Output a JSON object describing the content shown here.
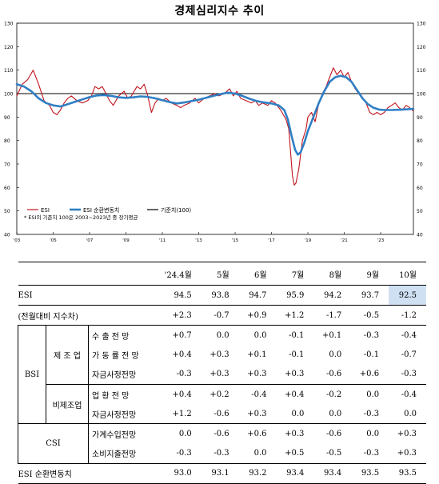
{
  "chart_data": {
    "type": "line",
    "title": "경제심리지수 추이",
    "ylim": [
      40,
      130
    ],
    "yticks": [
      40,
      50,
      60,
      70,
      80,
      90,
      100,
      110,
      120,
      130
    ],
    "x_range": [
      2003.0,
      2024.8
    ],
    "xtick_labels": [
      {
        "x": 2003,
        "label": "'03"
      },
      {
        "x": 2005,
        "label": "'05"
      },
      {
        "x": 2007,
        "label": "'07"
      },
      {
        "x": 2009,
        "label": "'09"
      },
      {
        "x": 2011,
        "label": "'11"
      },
      {
        "x": 2013,
        "label": "'13"
      },
      {
        "x": 2015,
        "label": "'15"
      },
      {
        "x": 2017,
        "label": "'17"
      },
      {
        "x": 2019,
        "label": "'19"
      },
      {
        "x": 2021,
        "label": "'21"
      },
      {
        "x": 2023,
        "label": "'23"
      }
    ],
    "reference_line": 100,
    "legend": [
      {
        "name": "ESI",
        "color": "#c0141c"
      },
      {
        "name": "ESI 순환변동치",
        "color": "#2f7fc4"
      },
      {
        "name": "기준치(100)",
        "color": "#000000"
      }
    ],
    "note": "* ESI의 기준치 100은 2003~2023년 중 장기평균",
    "series": [
      {
        "name": "ESI",
        "color": "#c0141c",
        "points": [
          [
            2003.0,
            99
          ],
          [
            2003.3,
            104
          ],
          [
            2003.6,
            106
          ],
          [
            2003.9,
            110
          ],
          [
            2004.2,
            104
          ],
          [
            2004.5,
            97
          ],
          [
            2004.8,
            95
          ],
          [
            2005.0,
            92
          ],
          [
            2005.2,
            91
          ],
          [
            2005.4,
            93
          ],
          [
            2005.6,
            96
          ],
          [
            2005.8,
            98
          ],
          [
            2006.0,
            99
          ],
          [
            2006.3,
            97
          ],
          [
            2006.6,
            96
          ],
          [
            2006.9,
            97
          ],
          [
            2007.1,
            99
          ],
          [
            2007.3,
            103
          ],
          [
            2007.5,
            102
          ],
          [
            2007.7,
            103
          ],
          [
            2007.9,
            100
          ],
          [
            2008.1,
            97
          ],
          [
            2008.3,
            95
          ],
          [
            2008.6,
            99
          ],
          [
            2008.9,
            101
          ],
          [
            2009.1,
            98
          ],
          [
            2009.3,
            99
          ],
          [
            2009.6,
            103
          ],
          [
            2009.8,
            102
          ],
          [
            2010.0,
            104
          ],
          [
            2010.2,
            99
          ],
          [
            2010.4,
            92
          ],
          [
            2010.6,
            96
          ],
          [
            2010.8,
            98
          ],
          [
            2011.0,
            97
          ],
          [
            2011.2,
            98
          ],
          [
            2011.5,
            96
          ],
          [
            2011.8,
            95
          ],
          [
            2012.0,
            94
          ],
          [
            2012.2,
            95
          ],
          [
            2012.5,
            96
          ],
          [
            2012.8,
            98
          ],
          [
            2013.0,
            96
          ],
          [
            2013.3,
            98
          ],
          [
            2013.6,
            99
          ],
          [
            2013.9,
            100
          ],
          [
            2014.1,
            99
          ],
          [
            2014.4,
            100
          ],
          [
            2014.7,
            102
          ],
          [
            2014.9,
            99
          ],
          [
            2015.1,
            101
          ],
          [
            2015.3,
            98
          ],
          [
            2015.6,
            97
          ],
          [
            2015.9,
            96
          ],
          [
            2016.1,
            97
          ],
          [
            2016.3,
            95
          ],
          [
            2016.5,
            96
          ],
          [
            2016.8,
            95
          ],
          [
            2017.0,
            97
          ],
          [
            2017.2,
            96
          ],
          [
            2017.5,
            93
          ],
          [
            2017.8,
            89
          ],
          [
            2017.95,
            85
          ],
          [
            2018.05,
            75
          ],
          [
            2018.15,
            65
          ],
          [
            2018.25,
            61
          ],
          [
            2018.35,
            62
          ],
          [
            2018.5,
            68
          ],
          [
            2018.7,
            80
          ],
          [
            2018.9,
            85
          ],
          [
            2019.0,
            90
          ],
          [
            2019.2,
            92
          ],
          [
            2019.4,
            88
          ],
          [
            2019.6,
            96
          ],
          [
            2019.8,
            100
          ],
          [
            2020.0,
            103
          ],
          [
            2020.2,
            107
          ],
          [
            2020.4,
            111
          ],
          [
            2020.6,
            108
          ],
          [
            2020.8,
            110
          ],
          [
            2021.0,
            107
          ],
          [
            2021.2,
            109
          ],
          [
            2021.4,
            105
          ],
          [
            2021.6,
            102
          ],
          [
            2021.8,
            100
          ],
          [
            2022.0,
            98
          ],
          [
            2022.2,
            96
          ],
          [
            2022.4,
            92
          ],
          [
            2022.6,
            91
          ],
          [
            2022.8,
            92
          ],
          [
            2023.0,
            91
          ],
          [
            2023.2,
            92
          ],
          [
            2023.4,
            94
          ],
          [
            2023.6,
            95
          ],
          [
            2023.8,
            96
          ],
          [
            2024.0,
            94
          ],
          [
            2024.2,
            93
          ],
          [
            2024.4,
            95
          ],
          [
            2024.6,
            94
          ],
          [
            2024.8,
            92.5
          ]
        ]
      },
      {
        "name": "ESI 순환변동치",
        "color": "#2f7fc4",
        "points": [
          [
            2003.0,
            104
          ],
          [
            2003.4,
            103
          ],
          [
            2003.8,
            101
          ],
          [
            2004.2,
            98
          ],
          [
            2004.6,
            96
          ],
          [
            2005.0,
            95
          ],
          [
            2005.4,
            94.5
          ],
          [
            2005.8,
            95.5
          ],
          [
            2006.2,
            96.5
          ],
          [
            2006.6,
            97.5
          ],
          [
            2007.0,
            98.5
          ],
          [
            2007.4,
            99.2
          ],
          [
            2007.8,
            99.4
          ],
          [
            2008.2,
            99
          ],
          [
            2008.6,
            98.4
          ],
          [
            2009.0,
            98.2
          ],
          [
            2009.4,
            98.4
          ],
          [
            2009.8,
            98.8
          ],
          [
            2010.2,
            98.6
          ],
          [
            2010.6,
            98
          ],
          [
            2011.0,
            97.2
          ],
          [
            2011.4,
            96.4
          ],
          [
            2011.8,
            95.8
          ],
          [
            2012.2,
            96.2
          ],
          [
            2012.6,
            96.8
          ],
          [
            2013.0,
            97.4
          ],
          [
            2013.4,
            98.2
          ],
          [
            2013.8,
            99
          ],
          [
            2014.2,
            99.8
          ],
          [
            2014.6,
            100.4
          ],
          [
            2015.0,
            100
          ],
          [
            2015.4,
            99
          ],
          [
            2015.8,
            97.8
          ],
          [
            2016.2,
            96.8
          ],
          [
            2016.6,
            96.2
          ],
          [
            2017.0,
            95.8
          ],
          [
            2017.4,
            95
          ],
          [
            2017.7,
            93
          ],
          [
            2017.9,
            89
          ],
          [
            2018.1,
            82
          ],
          [
            2018.3,
            76
          ],
          [
            2018.45,
            74
          ],
          [
            2018.6,
            75
          ],
          [
            2018.8,
            79
          ],
          [
            2019.0,
            84
          ],
          [
            2019.3,
            90
          ],
          [
            2019.6,
            96
          ],
          [
            2019.9,
            101
          ],
          [
            2020.2,
            105
          ],
          [
            2020.5,
            107
          ],
          [
            2020.8,
            107.6
          ],
          [
            2021.1,
            107
          ],
          [
            2021.4,
            105
          ],
          [
            2021.7,
            101.5
          ],
          [
            2022.0,
            98
          ],
          [
            2022.3,
            95.5
          ],
          [
            2022.6,
            94
          ],
          [
            2022.9,
            93.2
          ],
          [
            2023.2,
            93
          ],
          [
            2023.6,
            93
          ],
          [
            2024.0,
            93.1
          ],
          [
            2024.4,
            93.3
          ],
          [
            2024.8,
            93.5
          ]
        ]
      }
    ]
  },
  "table": {
    "months": [
      "'24.4월",
      "5월",
      "6월",
      "7월",
      "8월",
      "9월",
      "10월"
    ],
    "esi_label": "ESI",
    "esi_values": [
      "94.5",
      "93.8",
      "94.7",
      "95.9",
      "94.2",
      "93.7",
      "92.5"
    ],
    "diff_label": "(전월대비 지수차)",
    "diff_values": [
      "+2.3",
      "-0.7",
      "+0.9",
      "+1.2",
      "-1.7",
      "-0.5",
      "-1.2"
    ],
    "bsi_label": "BSI",
    "manufacturing_label": "제 조 업",
    "nonmanufacturing_label": "비제조업",
    "csi_label": "CSI",
    "rows": [
      {
        "label": "수 출 전 망",
        "values": [
          "+0.7",
          "0.0",
          "0.0",
          "-0.1",
          "+0.1",
          "-0.3",
          "-0.4"
        ]
      },
      {
        "label": "가 동 률 전 망",
        "values": [
          "+0.4",
          "+0.3",
          "+0.1",
          "-0.1",
          "0.0",
          "-0.1",
          "-0.7"
        ]
      },
      {
        "label": "자금사정전망",
        "values": [
          "-0.3",
          "+0.3",
          "+0.3",
          "+0.3",
          "-0.6",
          "+0.6",
          "-0.3"
        ]
      },
      {
        "label": "업 황 전 망",
        "values": [
          "+0.4",
          "+0.2",
          "-0.4",
          "+0.4",
          "-0.2",
          "0.0",
          "-0.4"
        ]
      },
      {
        "label": "자금사정전망",
        "values": [
          "+1.2",
          "-0.6",
          "+0.3",
          "0.0",
          "0.0",
          "-0.3",
          "0.0"
        ]
      },
      {
        "label": "가계수입전망",
        "values": [
          "0.0",
          "-0.6",
          "+0.6",
          "+0.3",
          "-0.6",
          "0.0",
          "+0.3"
        ]
      },
      {
        "label": "소비지출전망",
        "values": [
          "-0.3",
          "-0.3",
          "0.0",
          "+0.5",
          "-0.5",
          "-0.3",
          "+0.3"
        ]
      }
    ],
    "cycle_label": "ESI 순환변동치",
    "cycle_values": [
      "93.0",
      "93.1",
      "93.2",
      "93.4",
      "93.4",
      "93.5",
      "93.5"
    ]
  }
}
